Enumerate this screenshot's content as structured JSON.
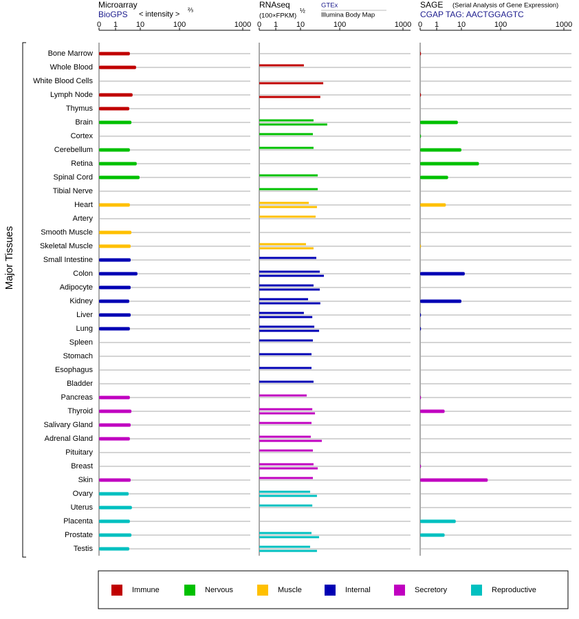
{
  "chart_data": {
    "type": "bar",
    "ylabel": "Major Tissues",
    "groups": [
      {
        "name": "Immune",
        "color": "#c00000",
        "categories": [
          "Bone Marrow",
          "Whole Blood",
          "White Blood Cells",
          "Lymph Node",
          "Thymus"
        ]
      },
      {
        "name": "Nervous",
        "color": "#00c000",
        "categories": [
          "Brain",
          "Cortex",
          "Cerebellum",
          "Retina",
          "Spinal Cord",
          "Tibial Nerve"
        ]
      },
      {
        "name": "Muscle",
        "color": "#ffc000",
        "categories": [
          "Heart",
          "Artery",
          "Smooth Muscle",
          "Skeletal Muscle"
        ]
      },
      {
        "name": "Internal",
        "color": "#0000b4",
        "categories": [
          "Small Intestine",
          "Colon",
          "Adipocyte",
          "Kidney",
          "Liver",
          "Lung",
          "Spleen",
          "Stomach",
          "Esophagus",
          "Bladder"
        ]
      },
      {
        "name": "Secretory",
        "color": "#c000c0",
        "categories": [
          "Pancreas",
          "Thyroid",
          "Salivary Gland",
          "Adrenal Gland",
          "Pituitary",
          "Breast",
          "Skin"
        ]
      },
      {
        "name": "Reproductive",
        "color": "#00c0c0",
        "categories": [
          "Ovary",
          "Uterus",
          "Placenta",
          "Prostate",
          "Testis"
        ]
      }
    ],
    "panels": [
      {
        "title": "Microarray",
        "source": "BioGPS",
        "unit": "< intensity >",
        "unit_exponent": "⅔",
        "xlim": [
          0,
          1000
        ],
        "xticks": [
          0,
          1,
          10,
          100,
          1000
        ],
        "series": [
          {
            "name": "BioGPS",
            "values": [
              3.8,
              6.8,
              null,
              4.9,
              3.6,
              4.4,
              null,
              3.8,
              7.2,
              9.4,
              null,
              3.8,
              null,
              4.4,
              4.1,
              4.1,
              7.7,
              4.1,
              3.6,
              4.1,
              3.8,
              null,
              null,
              null,
              null,
              3.8,
              4.4,
              4.1,
              3.8,
              null,
              null,
              4.1,
              3.4,
              4.6,
              3.8,
              4.4,
              3.6
            ]
          }
        ]
      },
      {
        "title": "RNAseq",
        "unit": "(100×FPKM)",
        "unit_exponent": "½",
        "xlim": [
          0,
          1000
        ],
        "xticks": [
          0,
          1,
          10,
          100,
          1000
        ],
        "series": [
          {
            "name": "GTEx",
            "values": [
              null,
              12.2,
              null,
              null,
              null,
              21.5,
              20.7,
              21.5,
              null,
              27.5,
              27.5,
              16.3,
              24.3,
              null,
              13.8,
              25.3,
              31,
              21.5,
              15.6,
              12.2,
              22.5,
              20.7,
              19.1,
              19.1,
              21.5,
              14.4,
              20,
              19.1,
              18.3,
              20.7,
              21.5,
              20.7,
              17.6,
              20,
              null,
              19.1,
              17.6
            ]
          },
          {
            "name": "Illumina Body Map",
            "values": [
              null,
              null,
              38,
              32,
              null,
              48,
              null,
              null,
              null,
              null,
              null,
              26.3,
              null,
              null,
              21.5,
              null,
              39.5,
              31,
              32,
              20,
              29.8,
              null,
              null,
              null,
              null,
              null,
              23.4,
              null,
              35,
              null,
              27.5,
              null,
              26.3,
              null,
              null,
              29.8,
              26.3
            ]
          }
        ]
      },
      {
        "title": "SAGE",
        "subtitle": "(Serial Analysis of Gene Expression)",
        "source": "CGAP TAG: AACTGGAGTC",
        "xlim": [
          0,
          1000
        ],
        "xticks": [
          0,
          1,
          10,
          100,
          1000
        ],
        "series": [
          {
            "name": "SAGE",
            "values": [
              0.05,
              null,
              null,
              0.05,
              null,
              7.2,
              0.05,
              10,
              28,
              2.9,
              null,
              2.35,
              null,
              null,
              0.05,
              null,
              12.2,
              null,
              10,
              0.05,
              0.05,
              null,
              null,
              null,
              null,
              0.05,
              2.1,
              null,
              null,
              null,
              0.05,
              47,
              null,
              null,
              5.9,
              2.1,
              null
            ]
          }
        ]
      }
    ]
  }
}
